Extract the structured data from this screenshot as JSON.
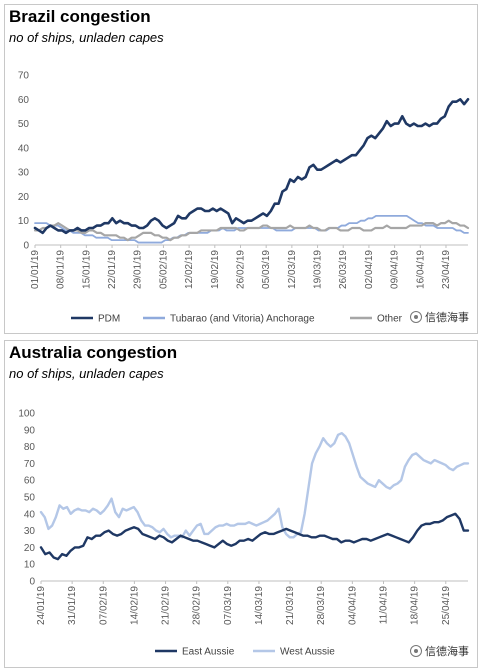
{
  "chart_data": [
    {
      "type": "line",
      "title": "Brazil congestion",
      "subtitle": "no of ships, unladen capes",
      "ylim": [
        0,
        70
      ],
      "yticks": [
        0,
        10,
        20,
        30,
        40,
        50,
        60,
        70
      ],
      "x_start": "2019-01-01",
      "x_end": "2019-04-29",
      "xtick_labels": [
        "01/01/19",
        "08/01/19",
        "15/01/19",
        "22/01/19",
        "29/01/19",
        "05/02/19",
        "12/02/19",
        "19/02/19",
        "26/02/19",
        "05/03/19",
        "12/03/19",
        "19/03/19",
        "26/03/19",
        "02/04/19",
        "09/04/19",
        "16/04/19",
        "23/04/19"
      ],
      "grid": false,
      "legend_position": "bottom",
      "series": [
        {
          "name": "PDM",
          "color": "#1f3864",
          "width": 2.6,
          "values": [
            7,
            6,
            5,
            7,
            8,
            7,
            6,
            6,
            5,
            6,
            6,
            7,
            6,
            6,
            7,
            7,
            8,
            8,
            9,
            9,
            11,
            9,
            10,
            9,
            9,
            8,
            8,
            7,
            7,
            8,
            10,
            11,
            10,
            8,
            7,
            8,
            9,
            12,
            11,
            11,
            13,
            14,
            15,
            15,
            14,
            14,
            15,
            14,
            15,
            14,
            13,
            9,
            11,
            10,
            9,
            10,
            10,
            11,
            12,
            13,
            12,
            14,
            17,
            17,
            22,
            23,
            27,
            26,
            28,
            27,
            28,
            32,
            33,
            31,
            31,
            32,
            33,
            34,
            35,
            34,
            35,
            36,
            37,
            37,
            39,
            41,
            44,
            45,
            44,
            46,
            48,
            51,
            49,
            50,
            50,
            53,
            50,
            49,
            50,
            49,
            49,
            50,
            49,
            50,
            50,
            52,
            53,
            57,
            59,
            59,
            60,
            58,
            60
          ]
        },
        {
          "name": "Tubarao (and Vitoria) Anchorage",
          "color": "#8faadc",
          "width": 1.8,
          "values": [
            9,
            9,
            9,
            9,
            8,
            8,
            8,
            7,
            6,
            6,
            5,
            5,
            5,
            4,
            4,
            4,
            3,
            3,
            3,
            3,
            2,
            2,
            2,
            2,
            2,
            2,
            2,
            1,
            1,
            1,
            1,
            1,
            1,
            1,
            2,
            2,
            3,
            3,
            4,
            4,
            5,
            5,
            5,
            5,
            5,
            5,
            6,
            6,
            6,
            7,
            6,
            6,
            6,
            7,
            7,
            7,
            7,
            7,
            7,
            7,
            7,
            7,
            7,
            6,
            6,
            6,
            6,
            6,
            7,
            7,
            7,
            7,
            7,
            7,
            6,
            6,
            6,
            7,
            7,
            7,
            8,
            8,
            9,
            9,
            9,
            10,
            10,
            11,
            11,
            12,
            12,
            12,
            12,
            12,
            12,
            12,
            12,
            12,
            11,
            10,
            9,
            9,
            8,
            8,
            8,
            7,
            7,
            7,
            7,
            7,
            6,
            6,
            5,
            5
          ]
        },
        {
          "name": "Other",
          "color": "#a6a6a6",
          "width": 2.2,
          "values": [
            6,
            6,
            7,
            7,
            8,
            8,
            9,
            8,
            7,
            6,
            6,
            6,
            5,
            5,
            6,
            6,
            5,
            5,
            4,
            4,
            4,
            4,
            3,
            3,
            2,
            3,
            3,
            4,
            5,
            5,
            5,
            4,
            4,
            3,
            3,
            2,
            3,
            3,
            4,
            4,
            5,
            5,
            5,
            6,
            6,
            6,
            6,
            6,
            7,
            7,
            7,
            7,
            7,
            6,
            6,
            7,
            7,
            7,
            7,
            8,
            8,
            7,
            7,
            7,
            7,
            7,
            8,
            7,
            7,
            7,
            7,
            8,
            7,
            7,
            6,
            6,
            7,
            7,
            7,
            6,
            6,
            6,
            7,
            7,
            7,
            6,
            6,
            6,
            7,
            7,
            7,
            8,
            7,
            7,
            7,
            7,
            7,
            8,
            8,
            8,
            8,
            9,
            9,
            9,
            8,
            9,
            9,
            10,
            9,
            9,
            8,
            8,
            7
          ]
        }
      ]
    },
    {
      "type": "line",
      "title": "Australia congestion",
      "subtitle": "no of ships, unladen capes",
      "ylim": [
        0,
        100
      ],
      "yticks": [
        0,
        10,
        20,
        30,
        40,
        50,
        60,
        70,
        80,
        90,
        100
      ],
      "x_start": "2019-01-24",
      "x_end": "2019-04-30",
      "xtick_labels": [
        "24/01/19",
        "31/01/19",
        "07/02/19",
        "14/02/19",
        "21/02/19",
        "28/02/19",
        "07/03/19",
        "14/03/19",
        "21/03/19",
        "28/03/19",
        "04/04/19",
        "11/04/19",
        "18/04/19",
        "25/04/19"
      ],
      "grid": false,
      "legend_position": "bottom",
      "series": [
        {
          "name": "East Aussie",
          "color": "#1f3864",
          "width": 2.4,
          "values": [
            20,
            16,
            17,
            14,
            13,
            16,
            15,
            18,
            20,
            20,
            21,
            26,
            25,
            27,
            27,
            29,
            30,
            28,
            27,
            28,
            30,
            31,
            32,
            31,
            28,
            27,
            26,
            25,
            27,
            26,
            24,
            23,
            25,
            27,
            26,
            25,
            24,
            24,
            23,
            22,
            21,
            20,
            22,
            24,
            22,
            21,
            22,
            24,
            24,
            25,
            24,
            26,
            28,
            29,
            28,
            28,
            29,
            30,
            31,
            30,
            29,
            28,
            27,
            27,
            26,
            26,
            27,
            27,
            26,
            25,
            25,
            23,
            24,
            24,
            23,
            24,
            25,
            25,
            24,
            25,
            26,
            27,
            28,
            27,
            26,
            25,
            24,
            23,
            26,
            30,
            33,
            34,
            34,
            35,
            35,
            36,
            38,
            39,
            40,
            37,
            30,
            30
          ]
        },
        {
          "name": "West Aussie",
          "color": "#b4c7e7",
          "width": 2.4,
          "values": [
            41,
            38,
            31,
            33,
            38,
            45,
            43,
            44,
            40,
            42,
            43,
            42,
            42,
            41,
            43,
            42,
            40,
            42,
            45,
            49,
            41,
            38,
            43,
            42,
            43,
            44,
            41,
            36,
            33,
            33,
            32,
            30,
            29,
            31,
            28,
            26,
            27,
            27,
            26,
            30,
            27,
            30,
            33,
            34,
            28,
            28,
            30,
            32,
            33,
            33,
            34,
            33,
            33,
            34,
            34,
            34,
            35,
            34,
            33,
            34,
            35,
            36,
            38,
            40,
            43,
            32,
            28,
            26,
            26,
            28,
            29,
            40,
            55,
            70,
            76,
            80,
            85,
            82,
            80,
            82,
            87,
            88,
            86,
            82,
            75,
            68,
            62,
            60,
            58,
            57,
            56,
            60,
            58,
            56,
            55,
            57,
            58,
            60,
            68,
            72,
            75,
            76,
            74,
            72,
            71,
            70,
            72,
            71,
            70,
            69,
            67,
            66,
            68,
            69,
            70,
            70
          ]
        }
      ]
    }
  ],
  "watermark": {
    "text": "信德海事"
  }
}
